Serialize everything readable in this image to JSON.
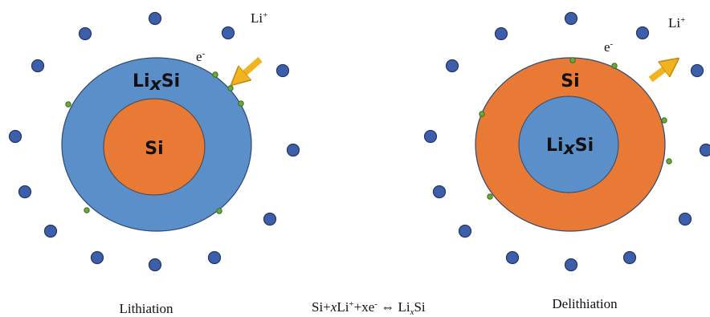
{
  "left": {
    "outer_label": [
      "Li",
      "x",
      "Si"
    ],
    "inner_label": "Si",
    "ion": [
      "Li",
      "+"
    ],
    "electron": [
      "e",
      "-"
    ],
    "caption": "Lithiation"
  },
  "right": {
    "outer_label": "Si",
    "inner_label": [
      "Li",
      "x",
      "Si"
    ],
    "ion": [
      "Li",
      "+"
    ],
    "electron": [
      "e",
      "-"
    ],
    "caption": "Delithiation"
  },
  "equation": [
    "Si+",
    "x",
    "Li",
    "+",
    "+xe",
    "-",
    " ⇔ Li",
    "x",
    "Si"
  ]
}
